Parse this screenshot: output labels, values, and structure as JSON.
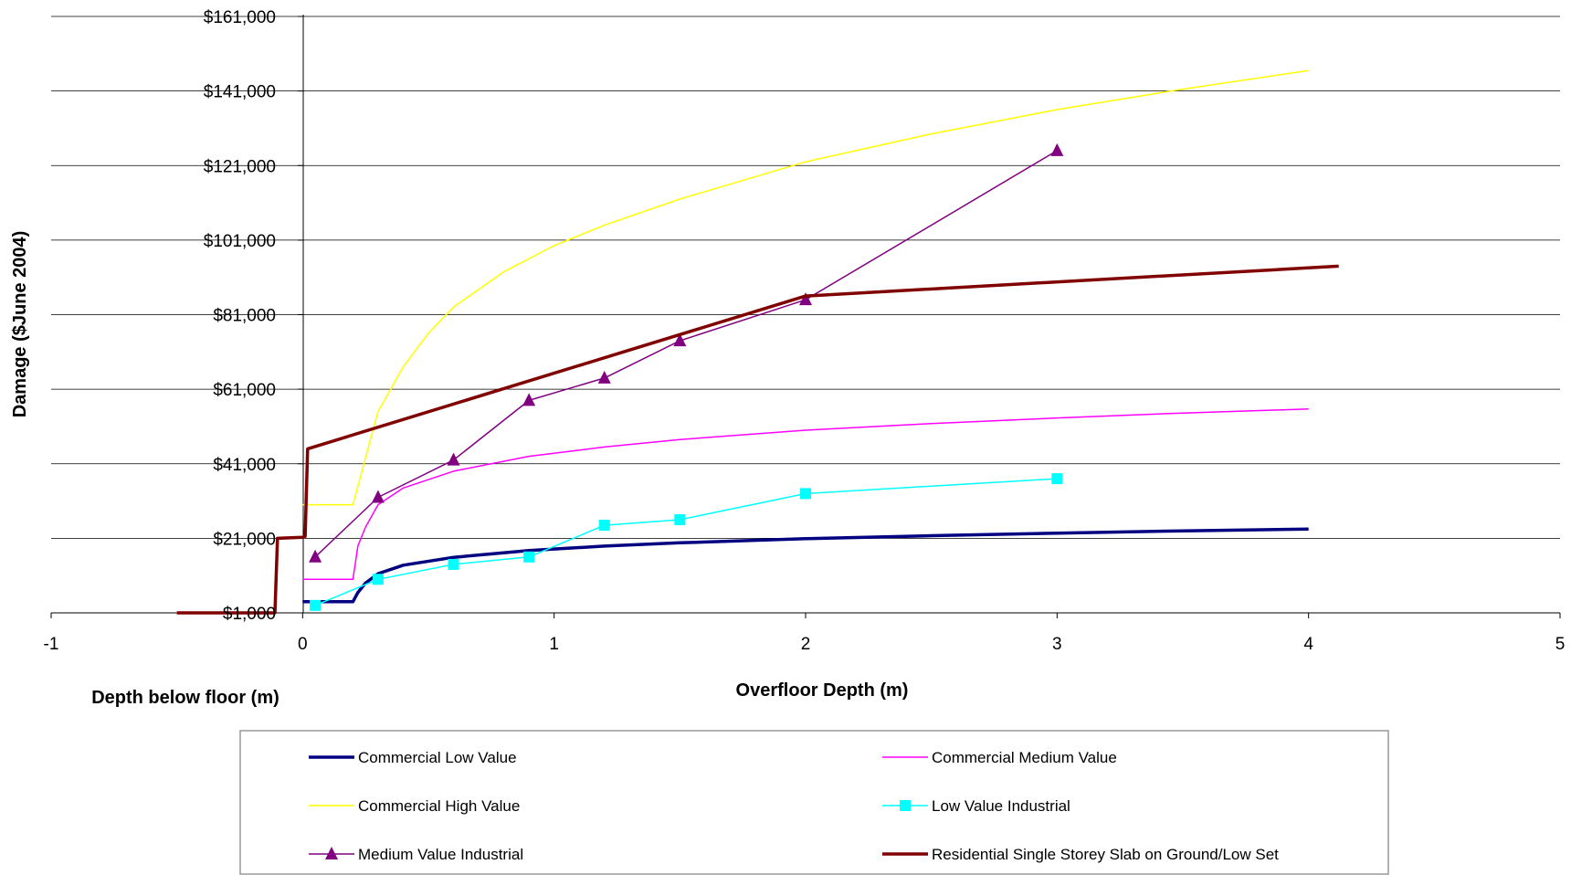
{
  "chart_data": {
    "type": "line",
    "title": "",
    "ylabel": "Damage ($June 2004)",
    "xlabel": "Overfloor Depth (m)",
    "xlabel_secondary": "Depth below floor (m)",
    "xlim": [
      -1,
      5
    ],
    "ylim": [
      1000,
      161000
    ],
    "x_ticks": [
      -1,
      0,
      1,
      2,
      3,
      4,
      5
    ],
    "x_tick_labels": [
      "-1",
      "0",
      "1",
      "2",
      "3",
      "4",
      "5"
    ],
    "y_ticks": [
      1000,
      21000,
      41000,
      61000,
      81000,
      101000,
      121000,
      141000,
      161000
    ],
    "y_tick_labels": [
      "$1,000",
      "$21,000",
      "$41,000",
      "$61,000",
      "$81,000",
      "$101,000",
      "$121,000",
      "$141,000",
      "$161,000"
    ],
    "grid": "horizontal",
    "legend_position": "bottom",
    "series": [
      {
        "name": "Commercial Low Value",
        "color": "#000080",
        "marker": "none",
        "width": 3.5,
        "x": [
          0,
          0.2,
          0.22,
          0.25,
          0.3,
          0.4,
          0.6,
          0.9,
          1.2,
          1.5,
          2,
          2.5,
          3,
          3.5,
          4
        ],
        "y": [
          4000,
          4000,
          6500,
          9000,
          11500,
          13800,
          15900,
          17700,
          18900,
          19800,
          20900,
          21700,
          22400,
          23000,
          23500
        ]
      },
      {
        "name": "Commercial Medium Value",
        "color": "#ff00ff",
        "marker": "none",
        "width": 1.5,
        "x": [
          0,
          0.2,
          0.22,
          0.25,
          0.3,
          0.4,
          0.6,
          0.9,
          1.2,
          1.5,
          2,
          2.5,
          3,
          3.5,
          4
        ],
        "y": [
          10000,
          10000,
          19000,
          24000,
          30000,
          34500,
          39000,
          43000,
          45500,
          47500,
          50000,
          51800,
          53300,
          54600,
          55700
        ]
      },
      {
        "name": "Commercial High Value",
        "color": "#ffff00",
        "marker": "none",
        "width": 1.5,
        "x": [
          0,
          0.2,
          0.3,
          0.4,
          0.5,
          0.6,
          0.8,
          1,
          1.2,
          1.5,
          2,
          2.5,
          3,
          3.5,
          4
        ],
        "y": [
          30000,
          30000,
          55000,
          67000,
          76000,
          83000,
          92500,
          99500,
          105000,
          112000,
          122000,
          129500,
          136000,
          141500,
          146500
        ]
      },
      {
        "name": "Low Value Industrial",
        "color": "#00ffff",
        "marker": "square",
        "width": 1.5,
        "x": [
          0.05,
          0.3,
          0.6,
          0.9,
          1.2,
          1.5,
          2,
          3
        ],
        "y": [
          3000,
          10000,
          14000,
          16000,
          24500,
          26000,
          33000,
          37000
        ]
      },
      {
        "name": "Medium Value Industrial",
        "color": "#800080",
        "marker": "triangle",
        "width": 1.5,
        "x": [
          0.05,
          0.3,
          0.6,
          0.9,
          1.2,
          1.5,
          2,
          3
        ],
        "y": [
          16000,
          32000,
          42000,
          58000,
          64000,
          74000,
          85000,
          125000
        ]
      },
      {
        "name": "Residential Single Storey Slab on Ground/Low Set",
        "color": "#800000",
        "marker": "none",
        "width": 3.5,
        "x": [
          -0.5,
          -0.11,
          -0.1,
          0,
          0.01,
          0.02,
          2,
          4.12
        ],
        "y": [
          1000,
          1000,
          21000,
          21300,
          21500,
          45000,
          86000,
          94000
        ]
      }
    ]
  }
}
